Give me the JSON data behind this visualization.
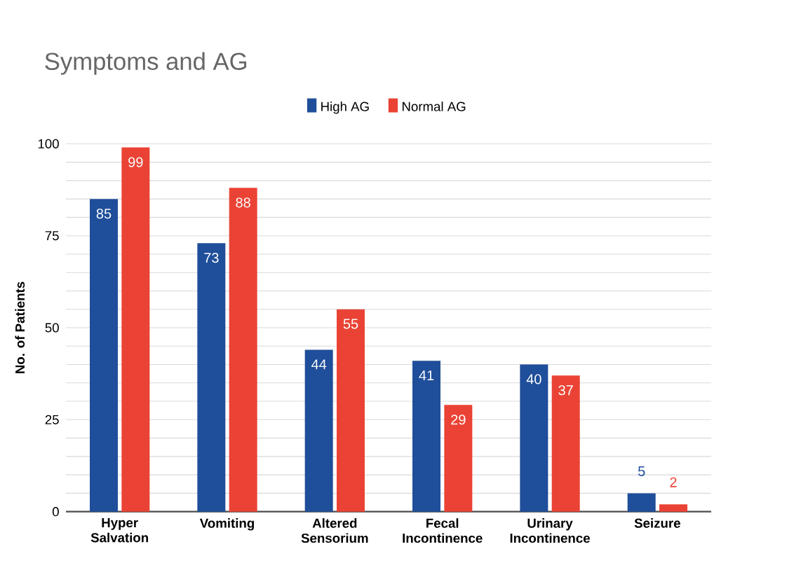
{
  "chart_data": {
    "type": "bar",
    "title": "Symptoms and AG",
    "ylabel": "No. of Patients",
    "categories": [
      "Hyper Salvation",
      "Vomiting",
      "Altered Sensorium",
      "Fecal Incontinence",
      "Urinary Incontinence",
      "Seizure"
    ],
    "series": [
      {
        "name": "High AG",
        "color": "#1f4e9a",
        "values": [
          85,
          73,
          44,
          41,
          40,
          5
        ]
      },
      {
        "name": "Normal AG",
        "color": "#ea4335",
        "values": [
          99,
          88,
          55,
          29,
          37,
          2
        ]
      }
    ],
    "ylim": [
      0,
      100
    ],
    "yticks": [
      0,
      {
        "value": 5,
        "label": null
      },
      {
        "value": 10,
        "label": null
      },
      {
        "value": 15,
        "label": null
      },
      {
        "value": 20,
        "label": null
      },
      25,
      {
        "value": 30,
        "label": null
      },
      {
        "value": 35,
        "label": null
      },
      {
        "value": 40,
        "label": null
      },
      {
        "value": 45,
        "label": null
      },
      50,
      {
        "value": 55,
        "label": null
      },
      {
        "value": 60,
        "label": null
      },
      {
        "value": 65,
        "label": null
      },
      {
        "value": 70,
        "label": null
      },
      75,
      {
        "value": 80,
        "label": null
      },
      {
        "value": 85,
        "label": null
      },
      {
        "value": 90,
        "label": null
      },
      {
        "value": 95,
        "label": null
      },
      100
    ],
    "grid": "y",
    "legend": "top",
    "data_labels": true
  }
}
